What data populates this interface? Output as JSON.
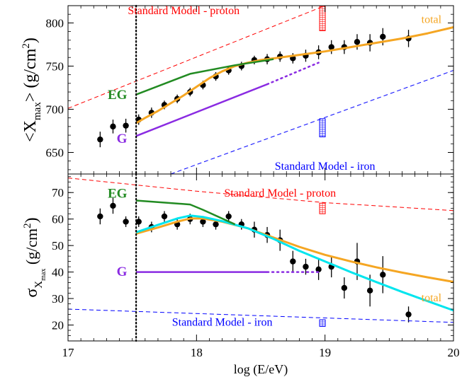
{
  "chart_data": [
    {
      "type": "scatter",
      "panel": "top",
      "ylabel_main": "<X",
      "ylabel_sub": "max",
      "ylabel_rest": "> (g/cm",
      "ylabel_sup": "2",
      "ylabel_end": ")",
      "xlim": [
        17,
        20
      ],
      "ylim": [
        625,
        820
      ],
      "yticks": [
        650,
        700,
        750,
        800
      ],
      "ytick_labels": [
        "650",
        "700",
        "750",
        "800"
      ],
      "vline_x": 17.53,
      "series": [
        {
          "kind": "points",
          "color": "#000000",
          "x": [
            17.25,
            17.35,
            17.45,
            17.55,
            17.65,
            17.75,
            17.85,
            17.95,
            18.05,
            18.15,
            18.25,
            18.35,
            18.45,
            18.55,
            18.65,
            18.75,
            18.85,
            18.95,
            19.05,
            19.15,
            19.25,
            19.35,
            19.45,
            19.65
          ],
          "y": [
            665,
            680,
            681,
            688,
            696,
            705,
            712,
            720,
            728,
            738,
            745,
            750,
            757,
            758,
            761,
            759,
            762,
            766,
            772,
            772,
            778,
            777,
            784,
            782
          ],
          "err": [
            9,
            8,
            8,
            6,
            6,
            5,
            5,
            5,
            5,
            5,
            5,
            5,
            5,
            6,
            6,
            6,
            7,
            8,
            8,
            8,
            9,
            10,
            10,
            10
          ]
        },
        {
          "name": "total",
          "kind": "line",
          "color": "#f5a623",
          "width": 3,
          "x": [
            17.53,
            17.6,
            17.7,
            17.8,
            17.9,
            18.0,
            18.1,
            18.2,
            18.3,
            18.4,
            18.5,
            18.6,
            18.8,
            19.0,
            19.2,
            19.4,
            19.6,
            19.8,
            20.0
          ],
          "y": [
            684,
            690,
            698,
            707,
            716,
            726,
            736,
            744,
            750,
            754,
            757,
            759,
            763,
            767,
            772,
            777,
            782,
            788,
            795
          ]
        },
        {
          "kind": "line",
          "color": "#228b22",
          "width": 2.5,
          "x": [
            17.53,
            17.95,
            18.3,
            18.6
          ],
          "y": [
            717,
            741,
            751,
            758
          ]
        },
        {
          "kind": "line",
          "color": "#8a2be2",
          "width": 2.5,
          "x": [
            17.53,
            18.55
          ],
          "y": [
            669,
            729
          ]
        },
        {
          "kind": "dotted",
          "color": "#8a2be2",
          "width": 2.5,
          "x": [
            18.55,
            18.95
          ],
          "y": [
            729,
            754
          ]
        },
        {
          "kind": "dashed",
          "color": "#ff0000",
          "width": 1,
          "x": [
            17,
            19.0
          ],
          "y": [
            701,
            820
          ]
        },
        {
          "kind": "dashed",
          "color": "#0000ff",
          "width": 1,
          "x": [
            17.8,
            20.0
          ],
          "y": [
            625,
            745
          ]
        }
      ],
      "boxes": [
        {
          "color": "#ff0000",
          "x": 18.98,
          "y0": 791,
          "y1": 819
        },
        {
          "color": "#0000ff",
          "x": 18.98,
          "y0": 668,
          "y1": 689
        }
      ],
      "labels": [
        {
          "text": "Standard Model - proton",
          "color": "#ff0000",
          "x": 17.9,
          "y": 810,
          "anchor": "middle"
        },
        {
          "text": "total",
          "color": "#f5a623",
          "x": 19.75,
          "y": 800,
          "anchor": "start"
        },
        {
          "text": "EG",
          "color": "#228b22",
          "x": 17.46,
          "y": 712,
          "anchor": "end",
          "bold": true
        },
        {
          "text": "G",
          "color": "#8a2be2",
          "x": 17.46,
          "y": 661,
          "anchor": "end",
          "bold": true
        },
        {
          "text": "Standard Model - iron",
          "color": "#0000ff",
          "x": 19.0,
          "y": 630,
          "anchor": "middle"
        }
      ]
    },
    {
      "type": "scatter",
      "panel": "bottom",
      "ylabel_main": "σ",
      "ylabel_sub": "X",
      "ylabel_subsub": "max",
      "ylabel_rest": "(g/cm",
      "ylabel_sup": "2",
      "ylabel_end": ")",
      "xlabel": "log (E/eV)",
      "xlim": [
        17,
        20
      ],
      "ylim": [
        14,
        77
      ],
      "xticks": [
        17,
        18,
        19,
        20
      ],
      "xtick_labels": [
        "17",
        "18",
        "19",
        "20"
      ],
      "yticks": [
        20,
        30,
        40,
        50,
        60,
        70
      ],
      "ytick_labels": [
        "20",
        "30",
        "40",
        "50",
        "60",
        "70"
      ],
      "vline_x": 17.53,
      "series": [
        {
          "kind": "points",
          "color": "#000000",
          "x": [
            17.25,
            17.35,
            17.45,
            17.55,
            17.65,
            17.75,
            17.85,
            17.95,
            18.05,
            18.15,
            18.25,
            18.35,
            18.45,
            18.55,
            18.65,
            18.75,
            18.85,
            18.95,
            19.05,
            19.15,
            19.25,
            19.35,
            19.45,
            19.65
          ],
          "y": [
            61,
            65,
            59,
            59,
            57,
            61,
            58,
            60,
            59,
            58,
            61,
            58,
            56,
            54,
            52,
            44,
            42,
            41,
            42,
            34,
            44,
            33,
            39,
            24
          ],
          "err": [
            3,
            3,
            2,
            2,
            2,
            2,
            2,
            2,
            2,
            2,
            2,
            2,
            3,
            3,
            4,
            4,
            3,
            4,
            4,
            4,
            7,
            6,
            7,
            3
          ]
        },
        {
          "name": "total",
          "kind": "line",
          "color": "#f5a623",
          "width": 3,
          "x": [
            17.53,
            17.7,
            17.85,
            17.95,
            18.05,
            18.2,
            18.4,
            18.6,
            18.8,
            19.0,
            19.2,
            19.4,
            19.6,
            19.8,
            20.0
          ],
          "y": [
            54.5,
            56.8,
            59,
            60.2,
            60.2,
            59,
            56.5,
            53,
            49.5,
            46.5,
            44,
            41.8,
            39.8,
            38,
            36.3
          ]
        },
        {
          "kind": "line",
          "color": "#00e5ee",
          "width": 3,
          "x": [
            17.53,
            17.7,
            17.85,
            17.95,
            18.05,
            18.2,
            18.4,
            18.6,
            18.8,
            19.0,
            19.2,
            19.4,
            19.6,
            19.8,
            20.0
          ],
          "y": [
            55,
            57.8,
            60.2,
            61.3,
            60.8,
            59.2,
            56.5,
            52.5,
            48,
            44,
            40,
            36.2,
            32.5,
            29,
            25.5
          ]
        },
        {
          "kind": "line",
          "color": "#228b22",
          "width": 2.5,
          "x": [
            17.53,
            17.95,
            18.05,
            18.3
          ],
          "y": [
            67,
            65.5,
            63.5,
            58
          ]
        },
        {
          "kind": "line",
          "color": "#8a2be2",
          "width": 2.5,
          "x": [
            17.53,
            18.55
          ],
          "y": [
            40,
            40
          ]
        },
        {
          "kind": "dotted",
          "color": "#8a2be2",
          "width": 2.5,
          "x": [
            18.55,
            18.95
          ],
          "y": [
            40,
            40
          ]
        },
        {
          "kind": "dashed",
          "color": "#ff0000",
          "width": 1,
          "x": [
            17.0,
            18.0,
            19.0,
            20.0
          ],
          "y": [
            75.5,
            70.5,
            66.2,
            63.2
          ]
        },
        {
          "kind": "dashed",
          "color": "#0000ff",
          "width": 1,
          "x": [
            17.0,
            20.0
          ],
          "y": [
            26,
            21
          ]
        }
      ],
      "boxes": [
        {
          "color": "#ff0000",
          "x": 18.98,
          "y0": 62,
          "y1": 66
        },
        {
          "color": "#0000ff",
          "x": 18.98,
          "y0": 19.5,
          "y1": 22
        }
      ],
      "labels": [
        {
          "text": "EG",
          "color": "#228b22",
          "x": 17.46,
          "y": 68,
          "anchor": "end",
          "bold": true
        },
        {
          "text": "Standard Model - proton",
          "color": "#ff0000",
          "x": 18.65,
          "y": 68.5,
          "anchor": "middle"
        },
        {
          "text": "G",
          "color": "#8a2be2",
          "x": 17.46,
          "y": 38.5,
          "anchor": "end",
          "bold": true
        },
        {
          "text": "total",
          "color": "#f5a623",
          "x": 19.75,
          "y": 29,
          "anchor": "start"
        },
        {
          "text": "Standard Model - iron",
          "color": "#0000ff",
          "x": 18.2,
          "y": 19.8,
          "anchor": "middle"
        }
      ]
    }
  ]
}
